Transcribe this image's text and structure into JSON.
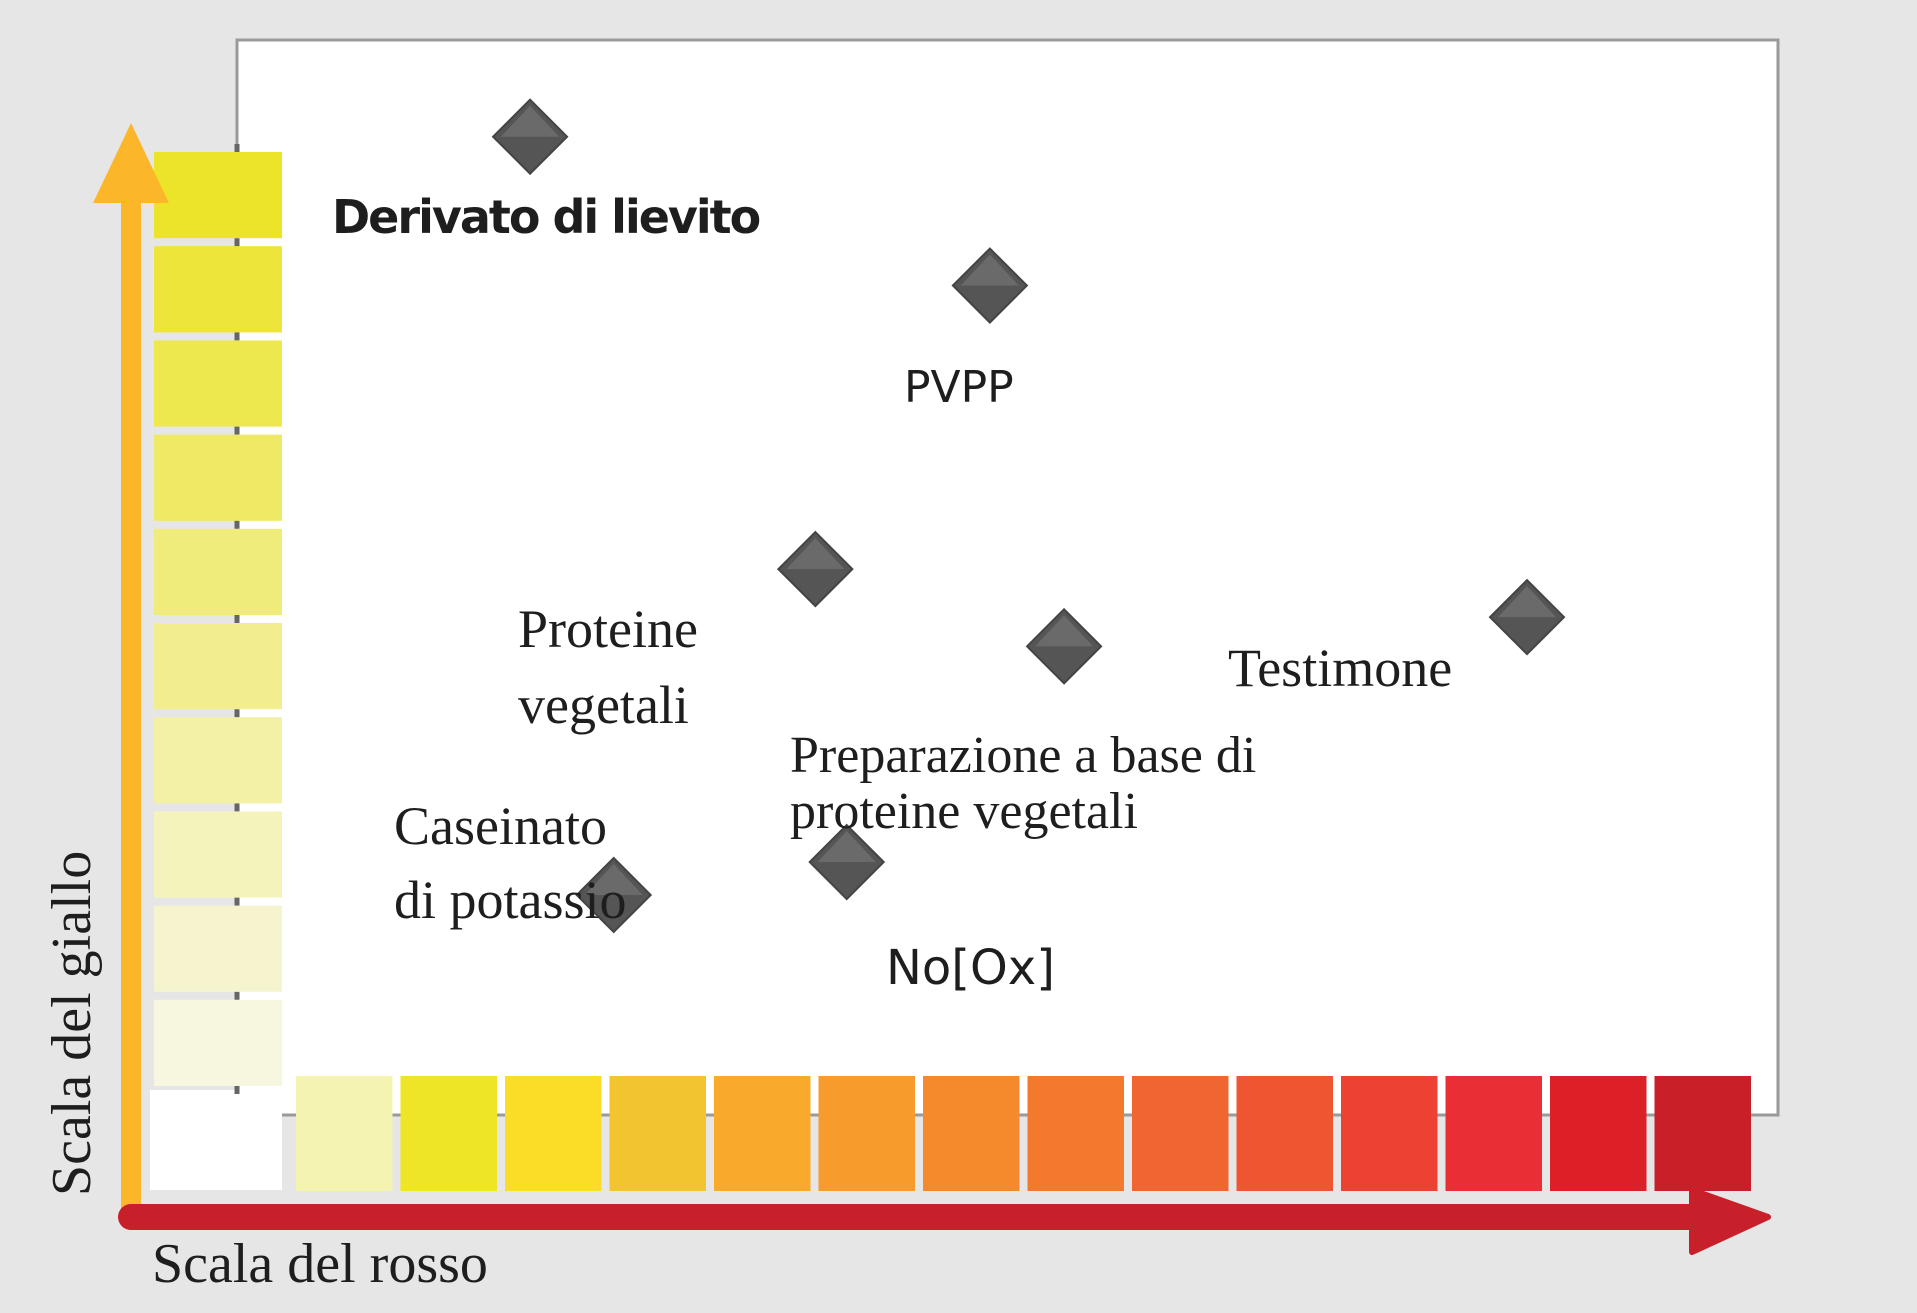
{
  "chart_data": {
    "type": "scatter",
    "title": "",
    "xlabel": "Scala del rosso",
    "ylabel": "Scala del giallo",
    "xlim": [
      0,
      14
    ],
    "ylim": [
      0,
      10
    ],
    "grid": false,
    "legend": "none",
    "x_swatch_colors": [
      "#f5f3b2",
      "#eee526",
      "#fbdc26",
      "#f2c530",
      "#faaa2a",
      "#f79b2c",
      "#f58a2c",
      "#f37a2c",
      "#f16530",
      "#ee5530",
      "#ec4133",
      "#ea2e35",
      "#dd1f27",
      "#c81f28"
    ],
    "y_swatch_colors": [
      "#f7f6df",
      "#f6f4cf",
      "#f5f3bc",
      "#f3f1a5",
      "#f2ee8f",
      "#f0ec7b",
      "#efea66",
      "#eee84f",
      "#ede53a",
      "#ece429"
    ],
    "points": [
      {
        "name": "Derivato di lievito",
        "x": 2.24,
        "y": 10.12
      },
      {
        "name": "PVPP",
        "x": 6.64,
        "y": 8.54
      },
      {
        "name": "Proteine vegetali",
        "x": 4.97,
        "y": 5.53
      },
      {
        "name": "Preparazione a base di proteine vegetali",
        "x": 7.35,
        "y": 4.71
      },
      {
        "name": "Testimone",
        "x": 11.78,
        "y": 5.02
      },
      {
        "name": "Caseinato di potassio",
        "x": 3.04,
        "y": 2.07
      },
      {
        "name": "No[Ox]",
        "x": 5.27,
        "y": 2.42
      }
    ]
  },
  "colors": {
    "marker": "#555555",
    "x_axis_arrow": "#c8202a",
    "y_axis_arrow": "#fbb62a",
    "plot_border": "#9a9a9a"
  }
}
